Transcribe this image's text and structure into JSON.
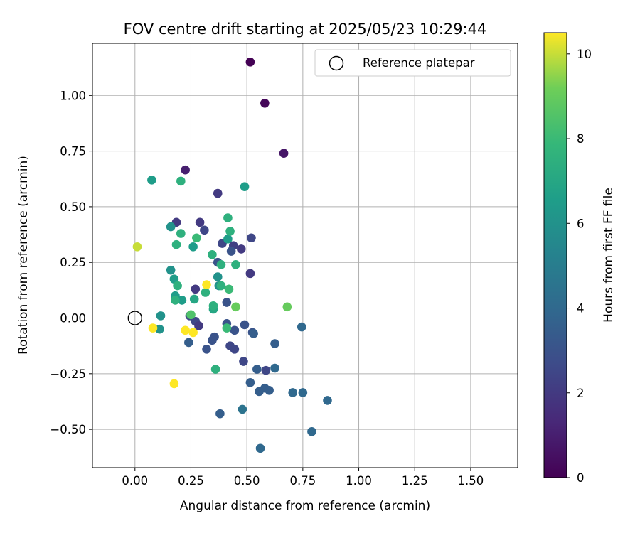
{
  "chart_data": {
    "type": "scatter",
    "title": "FOV centre drift starting at 2025/05/23 10:29:44",
    "xlabel": "Angular distance from reference (arcmin)",
    "ylabel": "Rotation from reference (arcmin)",
    "xlim": [
      -0.19,
      1.71
    ],
    "ylim": [
      -0.672,
      1.234
    ],
    "xticks": [
      0.0,
      0.25,
      0.5,
      0.75,
      1.0,
      1.25,
      1.5
    ],
    "xtick_labels": [
      "0.00",
      "0.25",
      "0.50",
      "0.75",
      "1.00",
      "1.25",
      "1.50"
    ],
    "yticks": [
      -0.5,
      -0.25,
      0.0,
      0.25,
      0.5,
      0.75,
      1.0
    ],
    "ytick_labels": [
      "−0.50",
      "−0.25",
      "0.00",
      "0.25",
      "0.50",
      "0.75",
      "1.00"
    ],
    "grid": true,
    "legend": {
      "placement": "top-right",
      "entries": [
        "Reference platepar"
      ]
    },
    "reference_point": {
      "x": 0.0,
      "y": 0.0
    },
    "colorbar": {
      "label": "Hours from first FF file",
      "range": [
        0,
        10.5
      ],
      "ticks": [
        0,
        2,
        4,
        6,
        8,
        10
      ],
      "tick_labels": [
        "0",
        "2",
        "4",
        "6",
        "8",
        "10"
      ],
      "colormap": "viridis"
    },
    "points": [
      {
        "x": 0.515,
        "y": 1.15,
        "h": 0.0
      },
      {
        "x": 0.58,
        "y": 0.965,
        "h": 0.2
      },
      {
        "x": 0.665,
        "y": 0.74,
        "h": 0.7
      },
      {
        "x": 0.225,
        "y": 0.665,
        "h": 1.0
      },
      {
        "x": 0.37,
        "y": 0.56,
        "h": 2.0
      },
      {
        "x": 0.185,
        "y": 0.43,
        "h": 2.0
      },
      {
        "x": 0.29,
        "y": 0.43,
        "h": 2.0
      },
      {
        "x": 0.31,
        "y": 0.395,
        "h": 2.5
      },
      {
        "x": 0.52,
        "y": 0.36,
        "h": 2.5
      },
      {
        "x": 0.39,
        "y": 0.335,
        "h": 2.5
      },
      {
        "x": 0.44,
        "y": 0.325,
        "h": 2.2
      },
      {
        "x": 0.475,
        "y": 0.31,
        "h": 2.0
      },
      {
        "x": 0.43,
        "y": 0.3,
        "h": 3.0
      },
      {
        "x": 0.515,
        "y": 0.2,
        "h": 2.0
      },
      {
        "x": 0.27,
        "y": 0.13,
        "h": 2.0
      },
      {
        "x": 0.41,
        "y": 0.07,
        "h": 3.0
      },
      {
        "x": 0.245,
        "y": 0.01,
        "h": 2.5
      },
      {
        "x": 0.27,
        "y": -0.015,
        "h": 2.5
      },
      {
        "x": 0.285,
        "y": -0.035,
        "h": 2.0
      },
      {
        "x": 0.41,
        "y": -0.025,
        "h": 3.0
      },
      {
        "x": 0.49,
        "y": -0.03,
        "h": 3.0
      },
      {
        "x": 0.445,
        "y": -0.055,
        "h": 3.0
      },
      {
        "x": 0.525,
        "y": -0.065,
        "h": 3.0
      },
      {
        "x": 0.53,
        "y": -0.07,
        "h": 3.5
      },
      {
        "x": 0.355,
        "y": -0.085,
        "h": 3.0
      },
      {
        "x": 0.345,
        "y": -0.1,
        "h": 3.0
      },
      {
        "x": 0.24,
        "y": -0.11,
        "h": 3.5
      },
      {
        "x": 0.625,
        "y": -0.115,
        "h": 3.5
      },
      {
        "x": 0.425,
        "y": -0.125,
        "h": 2.5
      },
      {
        "x": 0.32,
        "y": -0.14,
        "h": 3.0
      },
      {
        "x": 0.445,
        "y": -0.14,
        "h": 2.5
      },
      {
        "x": 0.745,
        "y": -0.04,
        "h": 4.0
      },
      {
        "x": 0.485,
        "y": -0.195,
        "h": 2.5
      },
      {
        "x": 0.545,
        "y": -0.23,
        "h": 3.5
      },
      {
        "x": 0.585,
        "y": -0.235,
        "h": 2.5
      },
      {
        "x": 0.625,
        "y": -0.225,
        "h": 4.0
      },
      {
        "x": 0.515,
        "y": -0.29,
        "h": 3.5
      },
      {
        "x": 0.58,
        "y": -0.315,
        "h": 3.5
      },
      {
        "x": 0.555,
        "y": -0.33,
        "h": 3.5
      },
      {
        "x": 0.6,
        "y": -0.325,
        "h": 3.5
      },
      {
        "x": 0.705,
        "y": -0.335,
        "h": 4.0
      },
      {
        "x": 0.75,
        "y": -0.335,
        "h": 4.0
      },
      {
        "x": 0.86,
        "y": -0.37,
        "h": 4.0
      },
      {
        "x": 0.48,
        "y": -0.41,
        "h": 4.5
      },
      {
        "x": 0.38,
        "y": -0.43,
        "h": 3.5
      },
      {
        "x": 0.79,
        "y": -0.51,
        "h": 4.0
      },
      {
        "x": 0.56,
        "y": -0.585,
        "h": 4.0
      },
      {
        "x": 0.37,
        "y": 0.25,
        "h": 3.0
      },
      {
        "x": 0.075,
        "y": 0.62,
        "h": 6.5
      },
      {
        "x": 0.49,
        "y": 0.59,
        "h": 6.5
      },
      {
        "x": 0.16,
        "y": 0.41,
        "h": 6.0
      },
      {
        "x": 0.26,
        "y": 0.32,
        "h": 6.5
      },
      {
        "x": 0.16,
        "y": 0.215,
        "h": 6.0
      },
      {
        "x": 0.175,
        "y": 0.175,
        "h": 6.5
      },
      {
        "x": 0.37,
        "y": 0.185,
        "h": 6.0
      },
      {
        "x": 0.375,
        "y": 0.145,
        "h": 6.0
      },
      {
        "x": 0.18,
        "y": 0.1,
        "h": 6.5
      },
      {
        "x": 0.21,
        "y": 0.08,
        "h": 6.5
      },
      {
        "x": 0.115,
        "y": 0.01,
        "h": 6.0
      },
      {
        "x": 0.11,
        "y": -0.05,
        "h": 6.0
      },
      {
        "x": 0.415,
        "y": 0.355,
        "h": 6.5
      },
      {
        "x": 0.265,
        "y": 0.085,
        "h": 7.0
      },
      {
        "x": 0.35,
        "y": 0.04,
        "h": 7.0
      },
      {
        "x": 0.205,
        "y": 0.615,
        "h": 7.5
      },
      {
        "x": 0.415,
        "y": 0.45,
        "h": 7.5
      },
      {
        "x": 0.425,
        "y": 0.39,
        "h": 7.5
      },
      {
        "x": 0.205,
        "y": 0.38,
        "h": 7.5
      },
      {
        "x": 0.275,
        "y": 0.36,
        "h": 8.0
      },
      {
        "x": 0.185,
        "y": 0.33,
        "h": 7.5
      },
      {
        "x": 0.345,
        "y": 0.285,
        "h": 7.5
      },
      {
        "x": 0.385,
        "y": 0.24,
        "h": 7.5
      },
      {
        "x": 0.45,
        "y": 0.24,
        "h": 7.5
      },
      {
        "x": 0.19,
        "y": 0.145,
        "h": 7.5
      },
      {
        "x": 0.385,
        "y": 0.145,
        "h": 7.5
      },
      {
        "x": 0.315,
        "y": 0.115,
        "h": 7.5
      },
      {
        "x": 0.42,
        "y": 0.13,
        "h": 8.0
      },
      {
        "x": 0.18,
        "y": 0.08,
        "h": 7.5
      },
      {
        "x": 0.35,
        "y": 0.055,
        "h": 7.5
      },
      {
        "x": 0.25,
        "y": 0.015,
        "h": 8.5
      },
      {
        "x": 0.41,
        "y": -0.045,
        "h": 8.0
      },
      {
        "x": 0.36,
        "y": -0.23,
        "h": 7.5
      },
      {
        "x": 0.45,
        "y": 0.05,
        "h": 9.0
      },
      {
        "x": 0.68,
        "y": 0.05,
        "h": 9.0
      },
      {
        "x": 0.01,
        "y": 0.32,
        "h": 10.0
      },
      {
        "x": 0.32,
        "y": 0.15,
        "h": 10.5
      },
      {
        "x": 0.08,
        "y": -0.045,
        "h": 10.5
      },
      {
        "x": 0.225,
        "y": -0.055,
        "h": 10.5
      },
      {
        "x": 0.26,
        "y": -0.065,
        "h": 10.5
      },
      {
        "x": 0.175,
        "y": -0.295,
        "h": 10.5
      }
    ]
  }
}
